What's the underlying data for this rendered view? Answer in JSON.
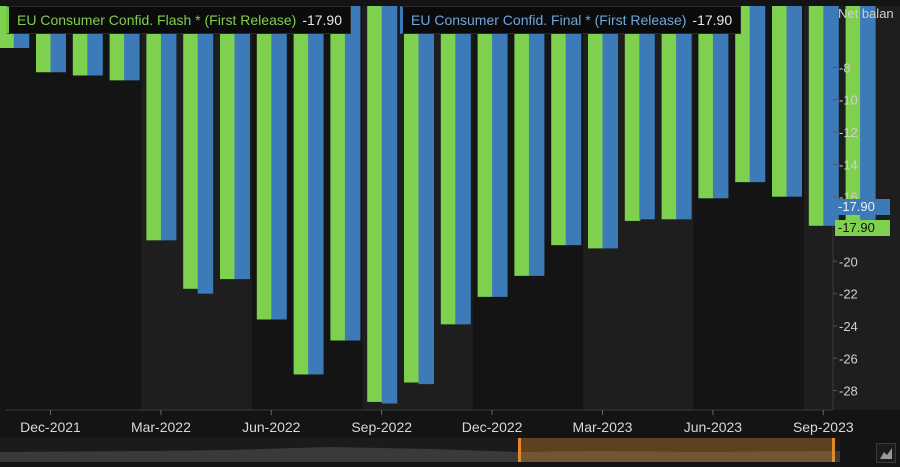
{
  "legend": {
    "flash": {
      "label": "EU Consumer Confid. Flash * (First Release)",
      "value": "-17.90"
    },
    "final": {
      "label": "EU Consumer Confid. Final * (First Release)",
      "value": "-17.90"
    }
  },
  "axis_title": "Net balan",
  "last_value_tags": {
    "final": "-17.90",
    "flash": "-17.90"
  },
  "colors": {
    "flash": "#7fd04f",
    "final": "#3d7ab8",
    "background": "#141414",
    "shade": "#1e1e1e",
    "navigator_range": "#e08a2c"
  },
  "icons": {
    "navigator": "chart-area-icon"
  },
  "chart_data": {
    "type": "bar",
    "title": "",
    "xlabel": "",
    "ylabel": "Net balan",
    "categories": [
      "Nov-2021",
      "Dec-2021",
      "Jan-2022",
      "Feb-2022",
      "Mar-2022",
      "Apr-2022",
      "May-2022",
      "Jun-2022",
      "Jul-2022",
      "Aug-2022",
      "Sep-2022",
      "Oct-2022",
      "Nov-2022",
      "Dec-2022",
      "Jan-2023",
      "Feb-2023",
      "Mar-2023",
      "Apr-2023",
      "May-2023",
      "Jun-2023",
      "Jul-2023",
      "Aug-2023",
      "Sep-2023",
      "Oct-2023"
    ],
    "series": [
      {
        "name": "EU Consumer Confid. Flash * (First Release)",
        "values": [
          -6.8,
          -8.3,
          -8.5,
          -8.8,
          -18.7,
          -21.7,
          -21.1,
          -23.6,
          -27.0,
          -24.9,
          -28.7,
          -27.5,
          -23.9,
          -22.2,
          -20.9,
          -19.0,
          -19.2,
          -17.5,
          -17.4,
          -16.1,
          -15.1,
          -16.0,
          -17.8,
          -17.9
        ]
      },
      {
        "name": "EU Consumer Confid. Final * (First Release)",
        "values": [
          -6.8,
          -8.3,
          -8.5,
          -8.8,
          -18.7,
          -22.0,
          -21.1,
          -23.6,
          -27.0,
          -24.9,
          -28.8,
          -27.6,
          -23.9,
          -22.2,
          -20.9,
          -19.0,
          -19.2,
          -17.4,
          -17.4,
          -16.1,
          -15.1,
          -16.0,
          -17.8,
          -17.9
        ]
      }
    ],
    "x_tick_labels": [
      "Dec-2021",
      "Mar-2022",
      "Jun-2022",
      "Sep-2022",
      "Dec-2022",
      "Mar-2023",
      "Jun-2023",
      "Sep-2023"
    ],
    "y_tick_labels": [
      "-8",
      "-10",
      "-12",
      "-14",
      "-16",
      "-20",
      "-22",
      "-24",
      "-26",
      "-28"
    ],
    "ylim": [
      -29.2,
      -4.2
    ],
    "grid": false,
    "legend_position": "top-left"
  }
}
